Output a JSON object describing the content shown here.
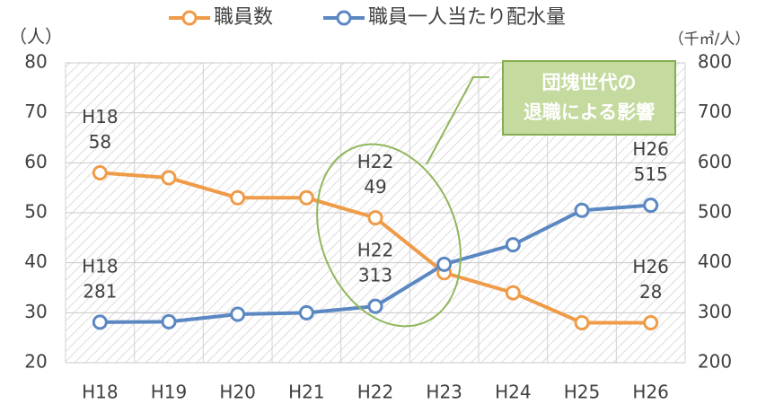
{
  "chart_data": {
    "type": "line",
    "categories": [
      "H18",
      "H19",
      "H20",
      "H21",
      "H22",
      "H23",
      "H24",
      "H25",
      "H26"
    ],
    "series": [
      {
        "name": "職員数",
        "color": "#ef9b48",
        "values": [
          58,
          57,
          53,
          53,
          49,
          38,
          34,
          28,
          28
        ],
        "label_indices": [
          0,
          4,
          8
        ]
      },
      {
        "name": "職員一人当たり配水量",
        "color": "#5b87c2",
        "axis": "y2",
        "values": [
          281,
          282,
          297,
          300,
          313,
          397,
          436,
          505,
          515
        ],
        "label_indices": [
          0,
          4,
          8
        ]
      }
    ],
    "ylabel": "（人）",
    "y2label": "（千㎥/人）",
    "ylim": [
      20,
      80
    ],
    "yticks": [
      20,
      30,
      40,
      50,
      60,
      70,
      80
    ],
    "y2lim": [
      200,
      800
    ],
    "y2ticks": [
      200,
      300,
      400,
      500,
      600,
      700,
      800
    ],
    "grid": true,
    "legend": "top",
    "annotation": [
      "団塊世代の",
      "退職による影響"
    ]
  }
}
